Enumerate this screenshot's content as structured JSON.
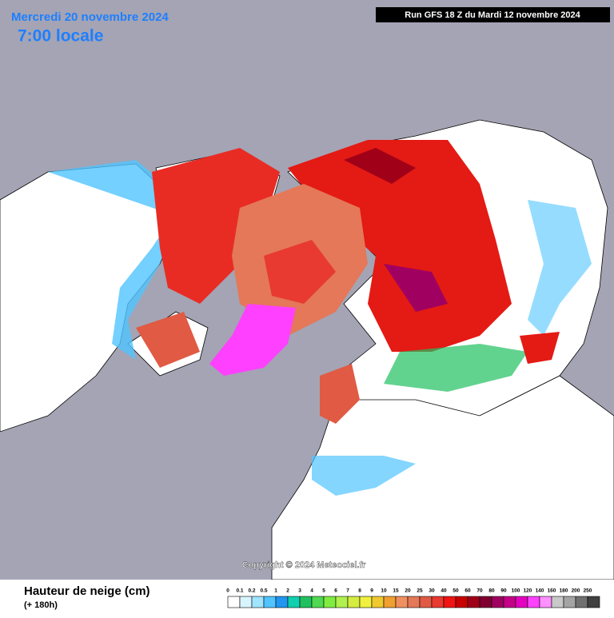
{
  "header": {
    "date": "Mercredi 20 novembre 2024",
    "time": "7:00 locale",
    "run": "Run GFS 18 Z du Mardi 12 novembre 2024"
  },
  "copyright": "Copyright © 2024 Meteociel.fr",
  "legend": {
    "title": "Hauteur de neige (cm)",
    "subtitle": "(+ 180h)",
    "items": [
      {
        "label": "0",
        "color": "#ffffff"
      },
      {
        "label": "0.1",
        "color": "#d8f4ff"
      },
      {
        "label": "0.2",
        "color": "#a0e4ff"
      },
      {
        "label": "0.5",
        "color": "#50c4ff"
      },
      {
        "label": "1",
        "color": "#2096f0"
      },
      {
        "label": "2",
        "color": "#10d0b0"
      },
      {
        "label": "3",
        "color": "#20c060"
      },
      {
        "label": "4",
        "color": "#50d850"
      },
      {
        "label": "5",
        "color": "#80ec40"
      },
      {
        "label": "6",
        "color": "#b0f050"
      },
      {
        "label": "7",
        "color": "#d4ec40"
      },
      {
        "label": "8",
        "color": "#f0f040"
      },
      {
        "label": "9",
        "color": "#f0c830"
      },
      {
        "label": "10",
        "color": "#f0a030"
      },
      {
        "label": "15",
        "color": "#f09060"
      },
      {
        "label": "20",
        "color": "#e47858"
      },
      {
        "label": "25",
        "color": "#e05a44"
      },
      {
        "label": "30",
        "color": "#e83a30"
      },
      {
        "label": "40",
        "color": "#f01414"
      },
      {
        "label": "50",
        "color": "#c80000"
      },
      {
        "label": "60",
        "color": "#a00018"
      },
      {
        "label": "70",
        "color": "#800030"
      },
      {
        "label": "80",
        "color": "#a00060"
      },
      {
        "label": "90",
        "color": "#c40088"
      },
      {
        "label": "100",
        "color": "#e400c0"
      },
      {
        "label": "120",
        "color": "#ff40ff"
      },
      {
        "label": "140",
        "color": "#ff90ff"
      },
      {
        "label": "160",
        "color": "#c8c8c8"
      },
      {
        "label": "180",
        "color": "#a4a4a4"
      },
      {
        "label": "200",
        "color": "#707070"
      },
      {
        "label": "250",
        "color": "#404040"
      }
    ]
  }
}
